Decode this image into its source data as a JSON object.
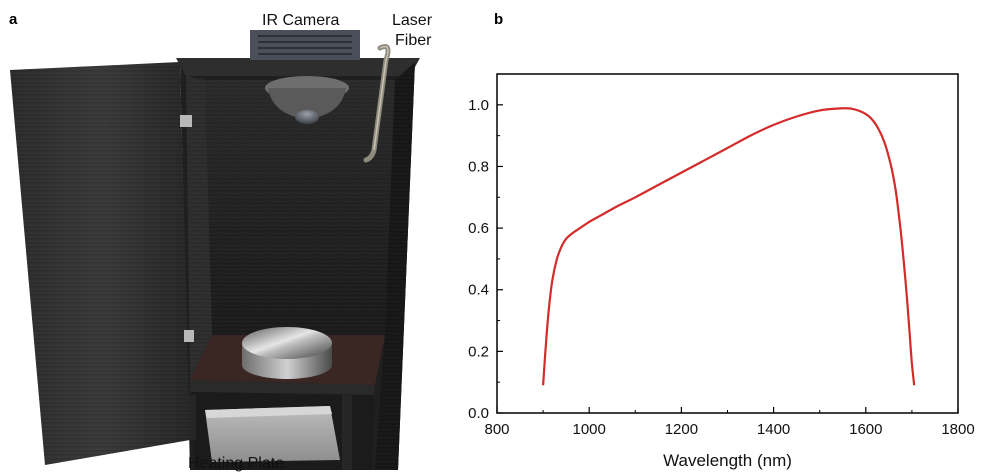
{
  "panel_a": {
    "letter": "a",
    "labels": {
      "camera": "IR Camera",
      "laser_line1": "Laser",
      "laser_line2": "Fiber",
      "heating": "Heating Plate"
    }
  },
  "panel_b": {
    "letter": "b"
  },
  "chart_data": {
    "type": "line",
    "xlabel": "Wavelength (nm)",
    "ylabel": "",
    "xlim": [
      800,
      1800
    ],
    "ylim": [
      0.0,
      1.1
    ],
    "xticks": [
      "800",
      "1000",
      "1200",
      "1400",
      "1600",
      "1800"
    ],
    "yticks": [
      "0.0",
      "0.2",
      "0.4",
      "0.6",
      "0.8",
      "1.0"
    ],
    "grid": false,
    "series": [
      {
        "color": "#d42a2a",
        "x": [
          900,
          905,
          912,
          920,
          930,
          940,
          950,
          965,
          980,
          1000,
          1030,
          1060,
          1100,
          1150,
          1200,
          1250,
          1300,
          1350,
          1400,
          1450,
          1500,
          1540,
          1570,
          1600,
          1620,
          1640,
          1655,
          1665,
          1675,
          1683,
          1690,
          1695,
          1700,
          1705
        ],
        "y": [
          0.09,
          0.2,
          0.33,
          0.43,
          0.5,
          0.54,
          0.565,
          0.585,
          0.6,
          0.62,
          0.645,
          0.67,
          0.7,
          0.74,
          0.78,
          0.82,
          0.86,
          0.9,
          0.935,
          0.962,
          0.982,
          0.988,
          0.987,
          0.97,
          0.94,
          0.88,
          0.8,
          0.72,
          0.6,
          0.48,
          0.36,
          0.26,
          0.16,
          0.09
        ]
      }
    ]
  }
}
